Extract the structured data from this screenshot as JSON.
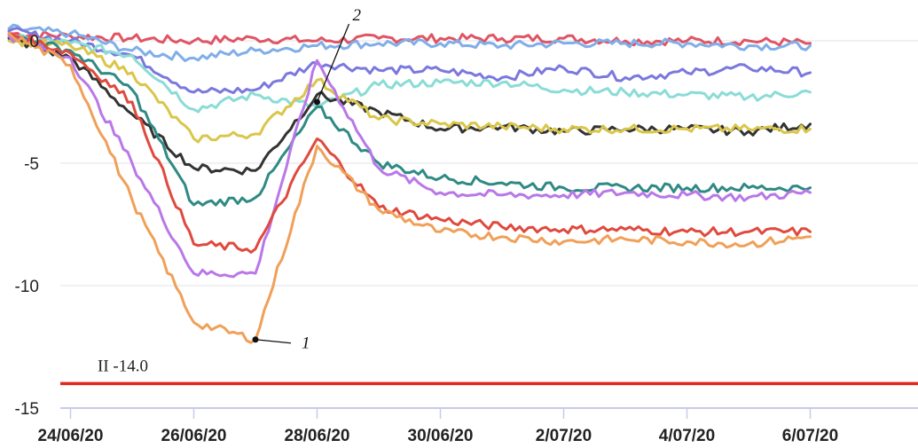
{
  "chart_data": {
    "type": "line",
    "title": "",
    "xlabel": "",
    "ylabel": "",
    "ylim": [
      -15,
      0.6
    ],
    "yticks": [
      "0",
      "-5",
      "-10",
      "-15"
    ],
    "yticks_values": [
      0,
      -5,
      -10,
      -15
    ],
    "xticks": [
      "24/06/20",
      "26/06/20",
      "28/06/20",
      "30/06/20",
      "2/07/20",
      "4/07/20",
      "6/07/20"
    ],
    "xticks_values": [
      "2020-06-24",
      "2020-06-26",
      "2020-06-28",
      "2020-06-30",
      "2020-07-02",
      "2020-07-04",
      "2020-07-06"
    ],
    "xlim": [
      "2020-06-23",
      "2020-07-06"
    ],
    "grid": "horizontal",
    "threshold": {
      "label": "II -14.0",
      "value": -14.0,
      "color": "#e0281d"
    },
    "annotations": [
      {
        "label": "1",
        "x": "2020-06-27",
        "y": -12.2
      },
      {
        "label": "2",
        "x": "2020-06-28",
        "y": -2.5
      }
    ],
    "series": [
      {
        "color": "#e05565",
        "x": [
          "2020-06-23",
          "2020-06-24",
          "2020-06-25",
          "2020-06-26",
          "2020-06-27",
          "2020-06-28",
          "2020-06-29",
          "2020-06-30",
          "2020-07-01",
          "2020-07-02",
          "2020-07-03",
          "2020-07-04",
          "2020-07-05",
          "2020-07-06"
        ],
        "values": [
          0.3,
          0.2,
          0.1,
          0.0,
          0.1,
          0.0,
          0.1,
          0.1,
          0.1,
          0.1,
          0.0,
          0.0,
          0.0,
          -0.1
        ]
      },
      {
        "color": "#80aee8",
        "x": [
          "2020-06-23",
          "2020-06-24",
          "2020-06-25",
          "2020-06-26",
          "2020-06-27",
          "2020-06-28",
          "2020-06-29",
          "2020-06-30",
          "2020-07-01",
          "2020-07-02",
          "2020-07-03",
          "2020-07-04",
          "2020-07-05",
          "2020-07-06"
        ],
        "values": [
          0.5,
          0.3,
          -0.4,
          -0.7,
          -0.4,
          -0.2,
          -0.1,
          -0.1,
          -0.2,
          -0.1,
          -0.1,
          -0.1,
          -0.2,
          -0.2
        ]
      },
      {
        "color": "#7b78de",
        "x": [
          "2020-06-23",
          "2020-06-24",
          "2020-06-25",
          "2020-06-26",
          "2020-06-27",
          "2020-06-28",
          "2020-06-29",
          "2020-06-30",
          "2020-07-01",
          "2020-07-02",
          "2020-07-03",
          "2020-07-04",
          "2020-07-05",
          "2020-07-06"
        ],
        "values": [
          0.4,
          0.0,
          -0.6,
          -2.1,
          -2.0,
          -0.9,
          -1.2,
          -1.2,
          -1.5,
          -1.1,
          -1.5,
          -1.3,
          -1.1,
          -1.3
        ]
      },
      {
        "color": "#8adcd6",
        "x": [
          "2020-06-23",
          "2020-06-24",
          "2020-06-25",
          "2020-06-26",
          "2020-06-27",
          "2020-06-28",
          "2020-06-29",
          "2020-06-30",
          "2020-07-01",
          "2020-07-02",
          "2020-07-03",
          "2020-07-04",
          "2020-07-05",
          "2020-07-06"
        ],
        "values": [
          0.1,
          -0.1,
          -0.6,
          -2.8,
          -2.2,
          -2.7,
          -1.8,
          -1.7,
          -1.7,
          -2.0,
          -2.1,
          -2.2,
          -2.3,
          -2.1
        ]
      },
      {
        "color": "#333333",
        "x": [
          "2020-06-23",
          "2020-06-24",
          "2020-06-25",
          "2020-06-26",
          "2020-06-27",
          "2020-06-28",
          "2020-06-29",
          "2020-06-30",
          "2020-07-01",
          "2020-07-02",
          "2020-07-03",
          "2020-07-04",
          "2020-07-05",
          "2020-07-06"
        ],
        "values": [
          0.1,
          -0.7,
          -3.0,
          -5.2,
          -5.3,
          -2.2,
          -2.9,
          -3.6,
          -3.5,
          -3.7,
          -3.6,
          -3.6,
          -3.7,
          -3.4
        ]
      },
      {
        "color": "#d9c64a",
        "x": [
          "2020-06-23",
          "2020-06-24",
          "2020-06-25",
          "2020-06-26",
          "2020-06-27",
          "2020-06-28",
          "2020-06-29",
          "2020-06-30",
          "2020-07-01",
          "2020-07-02",
          "2020-07-03",
          "2020-07-04",
          "2020-07-05",
          "2020-07-06"
        ],
        "values": [
          0.0,
          -0.2,
          -1.3,
          -4.0,
          -3.8,
          -1.6,
          -3.2,
          -3.4,
          -3.5,
          -3.6,
          -3.6,
          -3.6,
          -3.6,
          -3.6
        ]
      },
      {
        "color": "#2f8a84",
        "x": [
          "2020-06-23",
          "2020-06-24",
          "2020-06-25",
          "2020-06-26",
          "2020-06-27",
          "2020-06-28",
          "2020-06-29",
          "2020-06-30",
          "2020-07-01",
          "2020-07-02",
          "2020-07-03",
          "2020-07-04",
          "2020-07-05",
          "2020-07-06"
        ],
        "values": [
          0.2,
          -0.4,
          -2.0,
          -6.7,
          -6.4,
          -2.7,
          -5.0,
          -5.6,
          -5.8,
          -6.0,
          -6.0,
          -6.0,
          -6.0,
          -6.0
        ]
      },
      {
        "color": "#b978e8",
        "x": [
          "2020-06-23",
          "2020-06-24",
          "2020-06-25",
          "2020-06-26",
          "2020-06-27",
          "2020-06-28",
          "2020-06-29",
          "2020-06-30",
          "2020-07-01",
          "2020-07-02",
          "2020-07-03",
          "2020-07-04",
          "2020-07-05",
          "2020-07-06"
        ],
        "values": [
          0.2,
          -0.7,
          -5.0,
          -9.5,
          -9.5,
          -0.8,
          -5.2,
          -6.2,
          -6.3,
          -6.3,
          -6.2,
          -6.3,
          -6.4,
          -6.2
        ]
      },
      {
        "color": "#e04a3e",
        "x": [
          "2020-06-23",
          "2020-06-24",
          "2020-06-25",
          "2020-06-26",
          "2020-06-27",
          "2020-06-28",
          "2020-06-29",
          "2020-06-30",
          "2020-07-01",
          "2020-07-02",
          "2020-07-03",
          "2020-07-04",
          "2020-07-05",
          "2020-07-06"
        ],
        "values": [
          0.3,
          -0.5,
          -2.5,
          -8.3,
          -8.5,
          -4.0,
          -6.8,
          -7.3,
          -7.6,
          -7.7,
          -7.7,
          -7.8,
          -7.8,
          -7.8
        ]
      },
      {
        "color": "#f0a058",
        "x": [
          "2020-06-23",
          "2020-06-24",
          "2020-06-25",
          "2020-06-26",
          "2020-06-27",
          "2020-06-28",
          "2020-06-29",
          "2020-06-30",
          "2020-07-01",
          "2020-07-02",
          "2020-07-03",
          "2020-07-04",
          "2020-07-05",
          "2020-07-06"
        ],
        "values": [
          0.3,
          -1.0,
          -6.5,
          -11.5,
          -12.2,
          -4.3,
          -6.9,
          -7.8,
          -8.0,
          -8.2,
          -8.1,
          -8.2,
          -8.3,
          -8.0
        ]
      }
    ]
  }
}
